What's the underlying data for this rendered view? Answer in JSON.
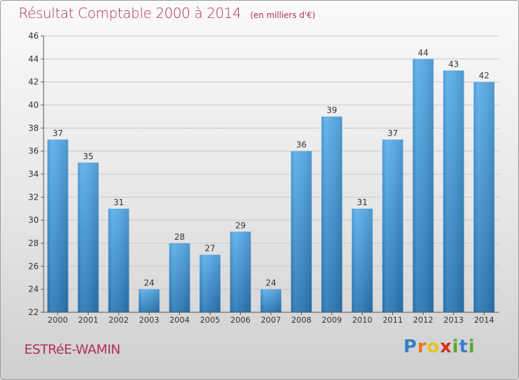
{
  "header": {
    "title": "Résultat Comptable 2000 à 2014",
    "subtitle": "(en milliers d'€)"
  },
  "footer": {
    "commune": "ESTRéE-WAMIN",
    "logo": {
      "letters": [
        "P",
        "r",
        "o",
        "x",
        "i",
        "t",
        "i"
      ],
      "colors": [
        "#3a7fc4",
        "#e07a1f",
        "#e8c21a",
        "#d6301e",
        "#57a832",
        "#3a7fc4",
        "#57a832"
      ]
    }
  },
  "colors": {
    "bar_top": "#5aaeea",
    "bar_bottom": "#2a78b6",
    "title": "#b03060",
    "axis_text": "#333333"
  },
  "chart_data": {
    "type": "bar",
    "title": "Résultat Comptable 2000 à 2014",
    "subtitle": "(en milliers d'€)",
    "categories": [
      "2000",
      "2001",
      "2002",
      "2003",
      "2004",
      "2005",
      "2006",
      "2007",
      "2008",
      "2009",
      "2010",
      "2011",
      "2012",
      "2013",
      "2014"
    ],
    "values": [
      37,
      35,
      31,
      24,
      28,
      27,
      29,
      24,
      36,
      39,
      31,
      37,
      44,
      43,
      42
    ],
    "ylim": [
      22,
      46
    ],
    "yticks": [
      22,
      24,
      26,
      28,
      30,
      32,
      34,
      36,
      38,
      40,
      42,
      44,
      46
    ],
    "grid": true,
    "legend": "none"
  }
}
